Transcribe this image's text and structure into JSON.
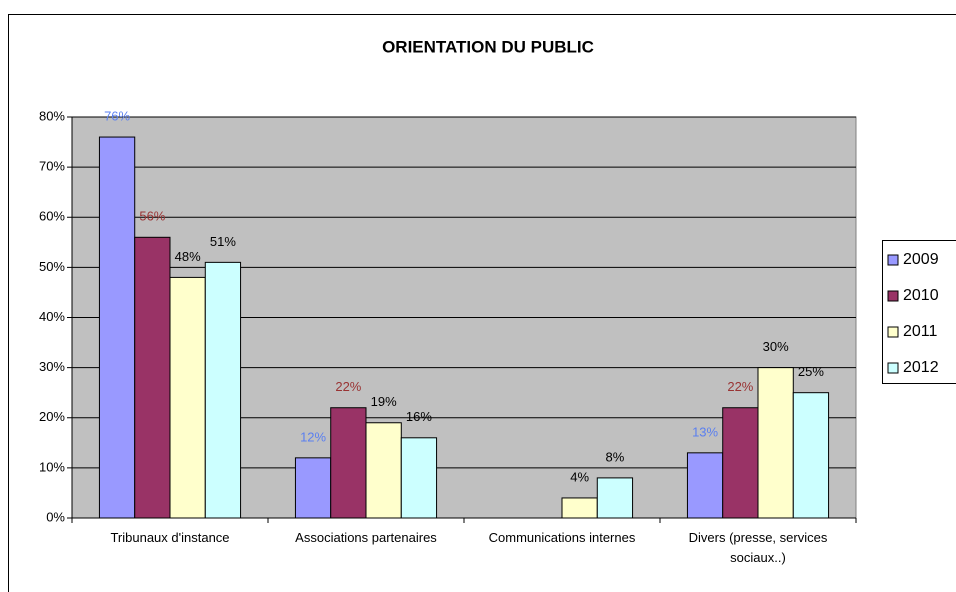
{
  "chart_data": {
    "type": "bar",
    "title": "ORIENTATION DU PUBLIC",
    "categories": [
      "Tribunaux d'instance",
      "Associations partenaires",
      "Communications internes",
      "Divers (presse, services sociaux..)"
    ],
    "series": [
      {
        "name": "2009",
        "color": "#9999ff",
        "label_color": "#5a7ff0",
        "values": [
          76,
          12,
          null,
          13
        ],
        "value_labels": [
          "76%",
          "12%",
          null,
          "13%"
        ]
      },
      {
        "name": "2010",
        "color": "#993366",
        "label_color": "#993333",
        "values": [
          56,
          22,
          null,
          22
        ],
        "value_labels": [
          "56%",
          "22%",
          null,
          "22%"
        ]
      },
      {
        "name": "2011",
        "color": "#ffffcc",
        "label_color": "#000000",
        "values": [
          48,
          19,
          4,
          30
        ],
        "value_labels": [
          "48%",
          "19%",
          "4%",
          "30%"
        ]
      },
      {
        "name": "2012",
        "color": "#ccffff",
        "label_color": "#000000",
        "values": [
          51,
          16,
          8,
          25
        ],
        "value_labels": [
          "51%",
          "16%",
          "8%",
          "25%"
        ]
      }
    ],
    "ylim": [
      0,
      80
    ],
    "yticks": [
      {
        "value": 0,
        "label": "0%"
      },
      {
        "value": 10,
        "label": "10%"
      },
      {
        "value": 20,
        "label": "20%"
      },
      {
        "value": 30,
        "label": "30%"
      },
      {
        "value": 40,
        "label": "40%"
      },
      {
        "value": 50,
        "label": "50%"
      },
      {
        "value": 60,
        "label": "60%"
      },
      {
        "value": 70,
        "label": "70%"
      },
      {
        "value": 80,
        "label": "80%"
      }
    ],
    "grid": true,
    "plot_background": "#c0c0c0",
    "legend": "right"
  }
}
